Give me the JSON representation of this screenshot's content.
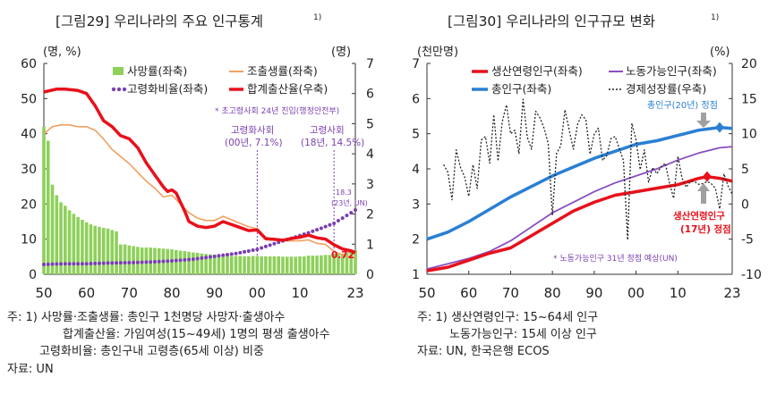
{
  "chart_data": [
    {
      "type": "line",
      "title": "[그림29] 우리나라의 주요 인구통계",
      "title_sup": "1)",
      "left_unit": "(명, %)",
      "right_unit": "(명)",
      "x_ticks": [
        "50",
        "60",
        "70",
        "80",
        "90",
        "00",
        "10",
        "23"
      ],
      "left_ticks": [
        "0",
        "10",
        "20",
        "30",
        "40",
        "50",
        "60"
      ],
      "right_ticks": [
        "0",
        "1",
        "2",
        "3",
        "4",
        "5",
        "6",
        "7"
      ],
      "xlim": [
        1950,
        2023
      ],
      "ylim_left": [
        0,
        60
      ],
      "ylim_right": [
        0,
        7
      ],
      "legend": [
        {
          "label": "사망률(좌축)",
          "kind": "bar",
          "color": "#8ed05a"
        },
        {
          "label": "조출생률(좌축)",
          "kind": "line",
          "color": "#f0a060"
        },
        {
          "label": "고령화비율(좌축)",
          "kind": "dot",
          "color": "#7a3fb0"
        },
        {
          "label": "합계출산율(우축)",
          "kind": "line",
          "color": "#e8101a"
        }
      ],
      "annotations": {
        "aged_society": "* 초고령사회 24년 진입(행정안전부)",
        "aging_2000_line1": "고령화사회",
        "aging_2000_line2": "(00년, 7.1%)",
        "aging_2018_line1": "고령사회",
        "aging_2018_line2": "(18년, 14.5%)",
        "elderly_end_line1": "18.3",
        "elderly_end_line2": "(23년, UN)",
        "tfr_end": "0.72"
      },
      "series": [
        {
          "name": "사망률(좌축)",
          "axis": "left",
          "x": [
            1950,
            1951,
            1952,
            1953,
            1954,
            1955,
            1956,
            1957,
            1958,
            1959,
            1960,
            1961,
            1962,
            1963,
            1964,
            1965,
            1966,
            1967,
            1968,
            1969,
            1970,
            1971,
            1972,
            1973,
            1974,
            1975,
            1976,
            1977,
            1978,
            1979,
            1980,
            1981,
            1982,
            1983,
            1984,
            1985,
            1986,
            1987,
            1988,
            1989,
            1990,
            1991,
            1992,
            1993,
            1994,
            1995,
            1996,
            1997,
            1998,
            1999,
            2000,
            2001,
            2002,
            2003,
            2004,
            2005,
            2006,
            2007,
            2008,
            2009,
            2010,
            2011,
            2012,
            2013,
            2014,
            2015,
            2016,
            2017,
            2018,
            2019,
            2020,
            2021,
            2022,
            2023
          ],
          "values": [
            42,
            38,
            25.5,
            22.5,
            20.5,
            19.5,
            18.2,
            17.2,
            16.3,
            15.5,
            14.8,
            14.2,
            13.8,
            13.5,
            13.2,
            13,
            12.6,
            12.2,
            8.5,
            8.5,
            8.2,
            8,
            7.8,
            7.6,
            7.6,
            7.6,
            7.5,
            7.4,
            7.3,
            7.2,
            7.1,
            6.9,
            6.7,
            6.6,
            6.4,
            6.2,
            6.1,
            5.9,
            5.8,
            5.7,
            5.6,
            5.5,
            5.3,
            5.3,
            5.2,
            5.2,
            5.2,
            5.1,
            5.1,
            5.2,
            5.2,
            5.1,
            5.1,
            5.1,
            5.1,
            5.1,
            5,
            5,
            5,
            5,
            5.1,
            5.1,
            5.3,
            5.3,
            5.3,
            5.4,
            5.5,
            5.5,
            5.8,
            5.8,
            5.9,
            6.2,
            6.9,
            6.9
          ]
        },
        {
          "name": "조출생률(좌축)",
          "axis": "left",
          "x": [
            1950,
            1952,
            1954,
            1956,
            1958,
            1960,
            1962,
            1964,
            1966,
            1968,
            1970,
            1972,
            1974,
            1976,
            1978,
            1980,
            1982,
            1984,
            1986,
            1988,
            1990,
            1992,
            1994,
            1996,
            1998,
            2000,
            2002,
            2004,
            2006,
            2008,
            2010,
            2012,
            2014,
            2016,
            2018,
            2020,
            2022,
            2023
          ],
          "values": [
            40,
            42,
            42.5,
            42.5,
            42,
            42,
            41,
            38.5,
            35.5,
            33.5,
            31.5,
            29,
            26.5,
            24.5,
            22,
            22.5,
            20,
            17.5,
            16,
            15.3,
            15.3,
            16.5,
            15.5,
            14.5,
            13.5,
            13,
            10.5,
            10,
            9.5,
            9.5,
            9.5,
            9.8,
            8.8,
            8.5,
            6.5,
            5.5,
            4.9,
            4.7
          ]
        },
        {
          "name": "고령화비율(좌축)",
          "axis": "left",
          "x": [
            1950,
            1955,
            1960,
            1965,
            1970,
            1975,
            1980,
            1985,
            1990,
            1995,
            2000,
            2003,
            2006,
            2009,
            2012,
            2015,
            2018,
            2020,
            2022,
            2023
          ],
          "values": [
            2.8,
            3,
            3,
            3.2,
            3.3,
            3.5,
            3.8,
            4.3,
            5.1,
            5.9,
            7.1,
            8.3,
            9.5,
            10.6,
            11.8,
            13.1,
            14.5,
            16,
            17.5,
            18.3
          ]
        },
        {
          "name": "합계출산율(우축)",
          "axis": "right",
          "x": [
            1950,
            1953,
            1955,
            1958,
            1960,
            1962,
            1964,
            1966,
            1968,
            1970,
            1972,
            1974,
            1976,
            1978,
            1979,
            1980,
            1981,
            1982,
            1983,
            1984,
            1986,
            1988,
            1990,
            1992,
            1994,
            1996,
            1998,
            2000,
            2002,
            2004,
            2006,
            2008,
            2010,
            2012,
            2014,
            2016,
            2018,
            2020,
            2022,
            2023
          ],
          "values": [
            6.05,
            6.15,
            6.15,
            6.1,
            6,
            5.6,
            5.1,
            4.9,
            4.6,
            4.5,
            4.2,
            3.7,
            3.3,
            2.9,
            2.75,
            2.8,
            2.7,
            2.4,
            2.1,
            1.75,
            1.6,
            1.55,
            1.6,
            1.75,
            1.65,
            1.55,
            1.45,
            1.47,
            1.18,
            1.16,
            1.13,
            1.19,
            1.23,
            1.3,
            1.21,
            1.17,
            0.98,
            0.84,
            0.78,
            0.72
          ]
        }
      ]
    },
    {
      "type": "line",
      "title": "[그림30] 우리나라의 인구규모 변화",
      "title_sup": "1)",
      "left_unit": "(천만명)",
      "right_unit": "(%)",
      "x_ticks": [
        "50",
        "60",
        "70",
        "80",
        "90",
        "00",
        "10",
        "23"
      ],
      "left_ticks": [
        "1",
        "2",
        "3",
        "4",
        "5",
        "6",
        "7"
      ],
      "right_ticks": [
        "-10",
        "-5",
        "0",
        "5",
        "10",
        "15",
        "20"
      ],
      "xlim": [
        1950,
        2023
      ],
      "ylim_left": [
        1,
        7
      ],
      "ylim_right": [
        -10,
        20
      ],
      "legend": [
        {
          "label": "생산연령인구(좌축)",
          "kind": "line",
          "color": "#e8101a"
        },
        {
          "label": "노동가능인구(좌축)",
          "kind": "line",
          "color": "#8a4fc0"
        },
        {
          "label": "총인구(좌축)",
          "kind": "line",
          "color": "#2a7fd4"
        },
        {
          "label": "경제성장률(우축)",
          "kind": "dotted",
          "color": "#222222"
        }
      ],
      "annotations": {
        "total_peak": "총인구(20년) 정점",
        "working_peak_line1": "생산연령인구",
        "working_peak_line2": "(17년) 정점",
        "labor_peak": "* 노동가능인구 31년 정점 예상(UN)"
      },
      "series": [
        {
          "name": "총인구(좌축)",
          "axis": "left",
          "x": [
            1950,
            1955,
            1960,
            1965,
            1970,
            1975,
            1980,
            1985,
            1990,
            1995,
            2000,
            2005,
            2010,
            2015,
            2020,
            2023
          ],
          "values": [
            2.0,
            2.2,
            2.5,
            2.85,
            3.2,
            3.5,
            3.8,
            4.05,
            4.3,
            4.5,
            4.7,
            4.8,
            4.95,
            5.1,
            5.18,
            5.15
          ]
        },
        {
          "name": "노동가능인구(좌축)",
          "axis": "left",
          "x": [
            1950,
            1955,
            1960,
            1965,
            1970,
            1975,
            1980,
            1985,
            1990,
            1995,
            2000,
            2005,
            2010,
            2015,
            2020,
            2023
          ],
          "values": [
            1.15,
            1.3,
            1.45,
            1.65,
            1.95,
            2.35,
            2.75,
            3.05,
            3.35,
            3.6,
            3.8,
            4.0,
            4.25,
            4.45,
            4.6,
            4.63
          ]
        },
        {
          "name": "생산연령인구(좌축)",
          "axis": "left",
          "x": [
            1950,
            1955,
            1960,
            1965,
            1970,
            1975,
            1980,
            1985,
            1990,
            1995,
            2000,
            2005,
            2010,
            2015,
            2017,
            2020,
            2023
          ],
          "values": [
            1.1,
            1.2,
            1.4,
            1.6,
            1.75,
            2.1,
            2.45,
            2.8,
            3.05,
            3.25,
            3.35,
            3.45,
            3.55,
            3.73,
            3.78,
            3.73,
            3.65
          ]
        },
        {
          "name": "경제성장률(우축)",
          "axis": "right",
          "x": [
            1954,
            1955,
            1956,
            1957,
            1958,
            1959,
            1960,
            1961,
            1962,
            1963,
            1964,
            1965,
            1966,
            1967,
            1968,
            1969,
            1970,
            1971,
            1972,
            1973,
            1974,
            1975,
            1976,
            1977,
            1978,
            1979,
            1980,
            1981,
            1982,
            1983,
            1984,
            1985,
            1986,
            1987,
            1988,
            1989,
            1990,
            1991,
            1992,
            1993,
            1994,
            1995,
            1996,
            1997,
            1998,
            1999,
            2000,
            2001,
            2002,
            2003,
            2004,
            2005,
            2006,
            2007,
            2008,
            2009,
            2010,
            2011,
            2012,
            2013,
            2014,
            2015,
            2016,
            2017,
            2018,
            2019,
            2020,
            2021,
            2022,
            2023
          ],
          "values": [
            5.6,
            4.5,
            0.6,
            7.7,
            5.2,
            3.9,
            1.1,
            5.6,
            2.2,
            9.1,
            9.6,
            5.8,
            12.7,
            6.1,
            11.7,
            14.1,
            10,
            10.5,
            7.2,
            14.9,
            9.5,
            7.8,
            13.2,
            12.3,
            10.8,
            8.6,
            -1.6,
            7.2,
            8.3,
            13.4,
            10.6,
            7.8,
            11.3,
            12.7,
            12,
            7.1,
            9.9,
            10.8,
            6.2,
            6.9,
            9.3,
            9.6,
            7.9,
            6.2,
            -5.1,
            11.5,
            9.1,
            4.9,
            7.7,
            3.1,
            5.2,
            4.3,
            5.3,
            5.8,
            3,
            0.8,
            6.8,
            3.7,
            2.4,
            3.2,
            3.2,
            2.8,
            2.9,
            3.2,
            2.9,
            2.2,
            -0.7,
            4.3,
            2.6,
            1.4
          ]
        }
      ]
    }
  ],
  "footnotes": {
    "left": [
      "주: 1) 사망률·조출생률: 총인구 1천명당 사망자·출생아수",
      "합계출산율: 가임여성(15~49세) 1명의 평생 출생아수",
      "고령화비율: 총인구내 고령층(65세 이상) 비중",
      "자료: UN"
    ],
    "right": [
      "주: 1) 생산연령인구: 15~64세 인구",
      "노동가능인구: 15세 이상 인구",
      "자료: UN, 한국은행 ECOS"
    ]
  }
}
